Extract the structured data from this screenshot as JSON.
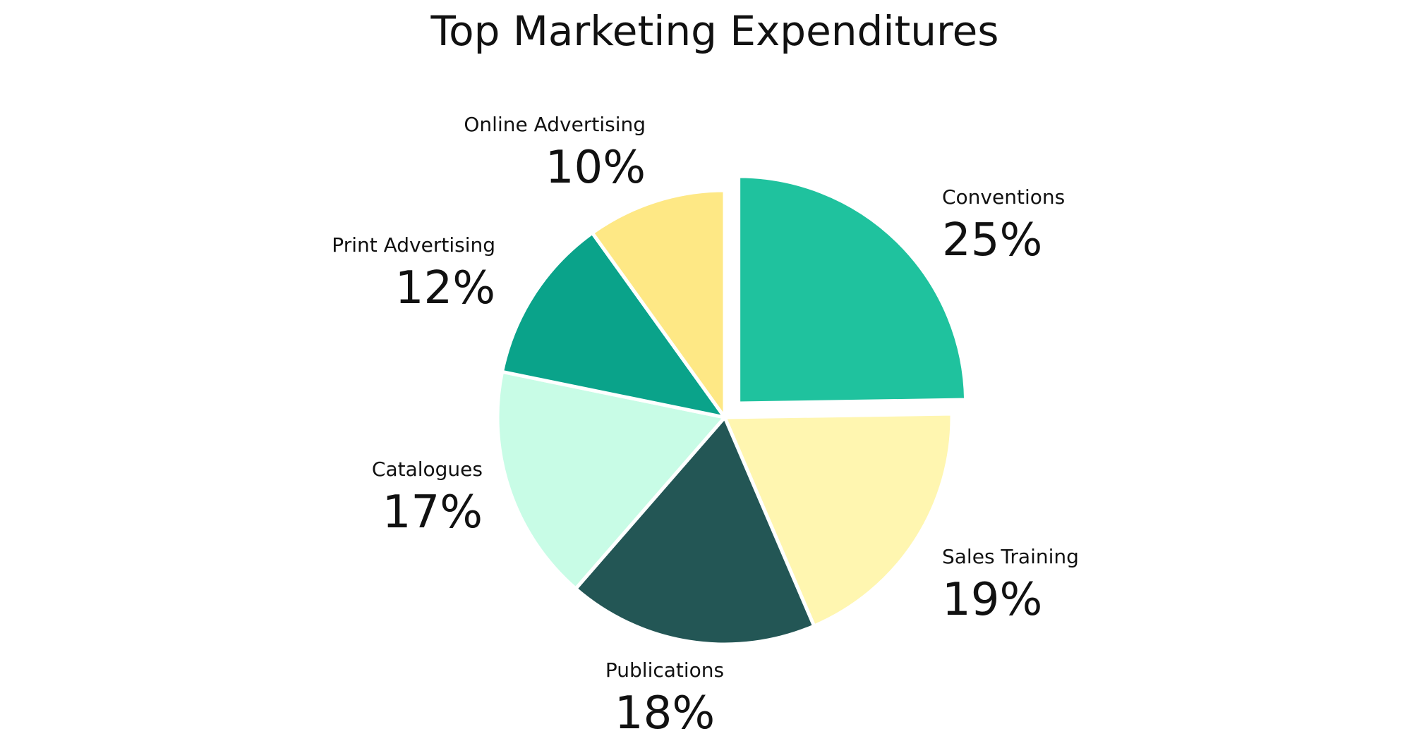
{
  "chart_data": {
    "type": "pie",
    "title": "Top Marketing Expenditures",
    "slices": [
      {
        "label": "Conventions",
        "value": 25,
        "value_label": "25%",
        "color": "#1fc29e",
        "exploded": true
      },
      {
        "label": "Sales Training",
        "value": 19,
        "value_label": "19%",
        "color": "#fff6b0",
        "exploded": false
      },
      {
        "label": "Publications",
        "value": 18,
        "value_label": "18%",
        "color": "#235655",
        "exploded": false
      },
      {
        "label": "Catalogues",
        "value": 17,
        "value_label": "17%",
        "color": "#c8fce6",
        "exploded": false
      },
      {
        "label": "Print Advertising",
        "value": 12,
        "value_label": "12%",
        "color": "#0aa38a",
        "exploded": false
      },
      {
        "label": "Online Advertising",
        "value": 10,
        "value_label": "10%",
        "color": "#fee885",
        "exploded": false
      }
    ],
    "start_angle_deg": 0,
    "direction": "clockwise",
    "legend": "none",
    "labels": "outside"
  }
}
